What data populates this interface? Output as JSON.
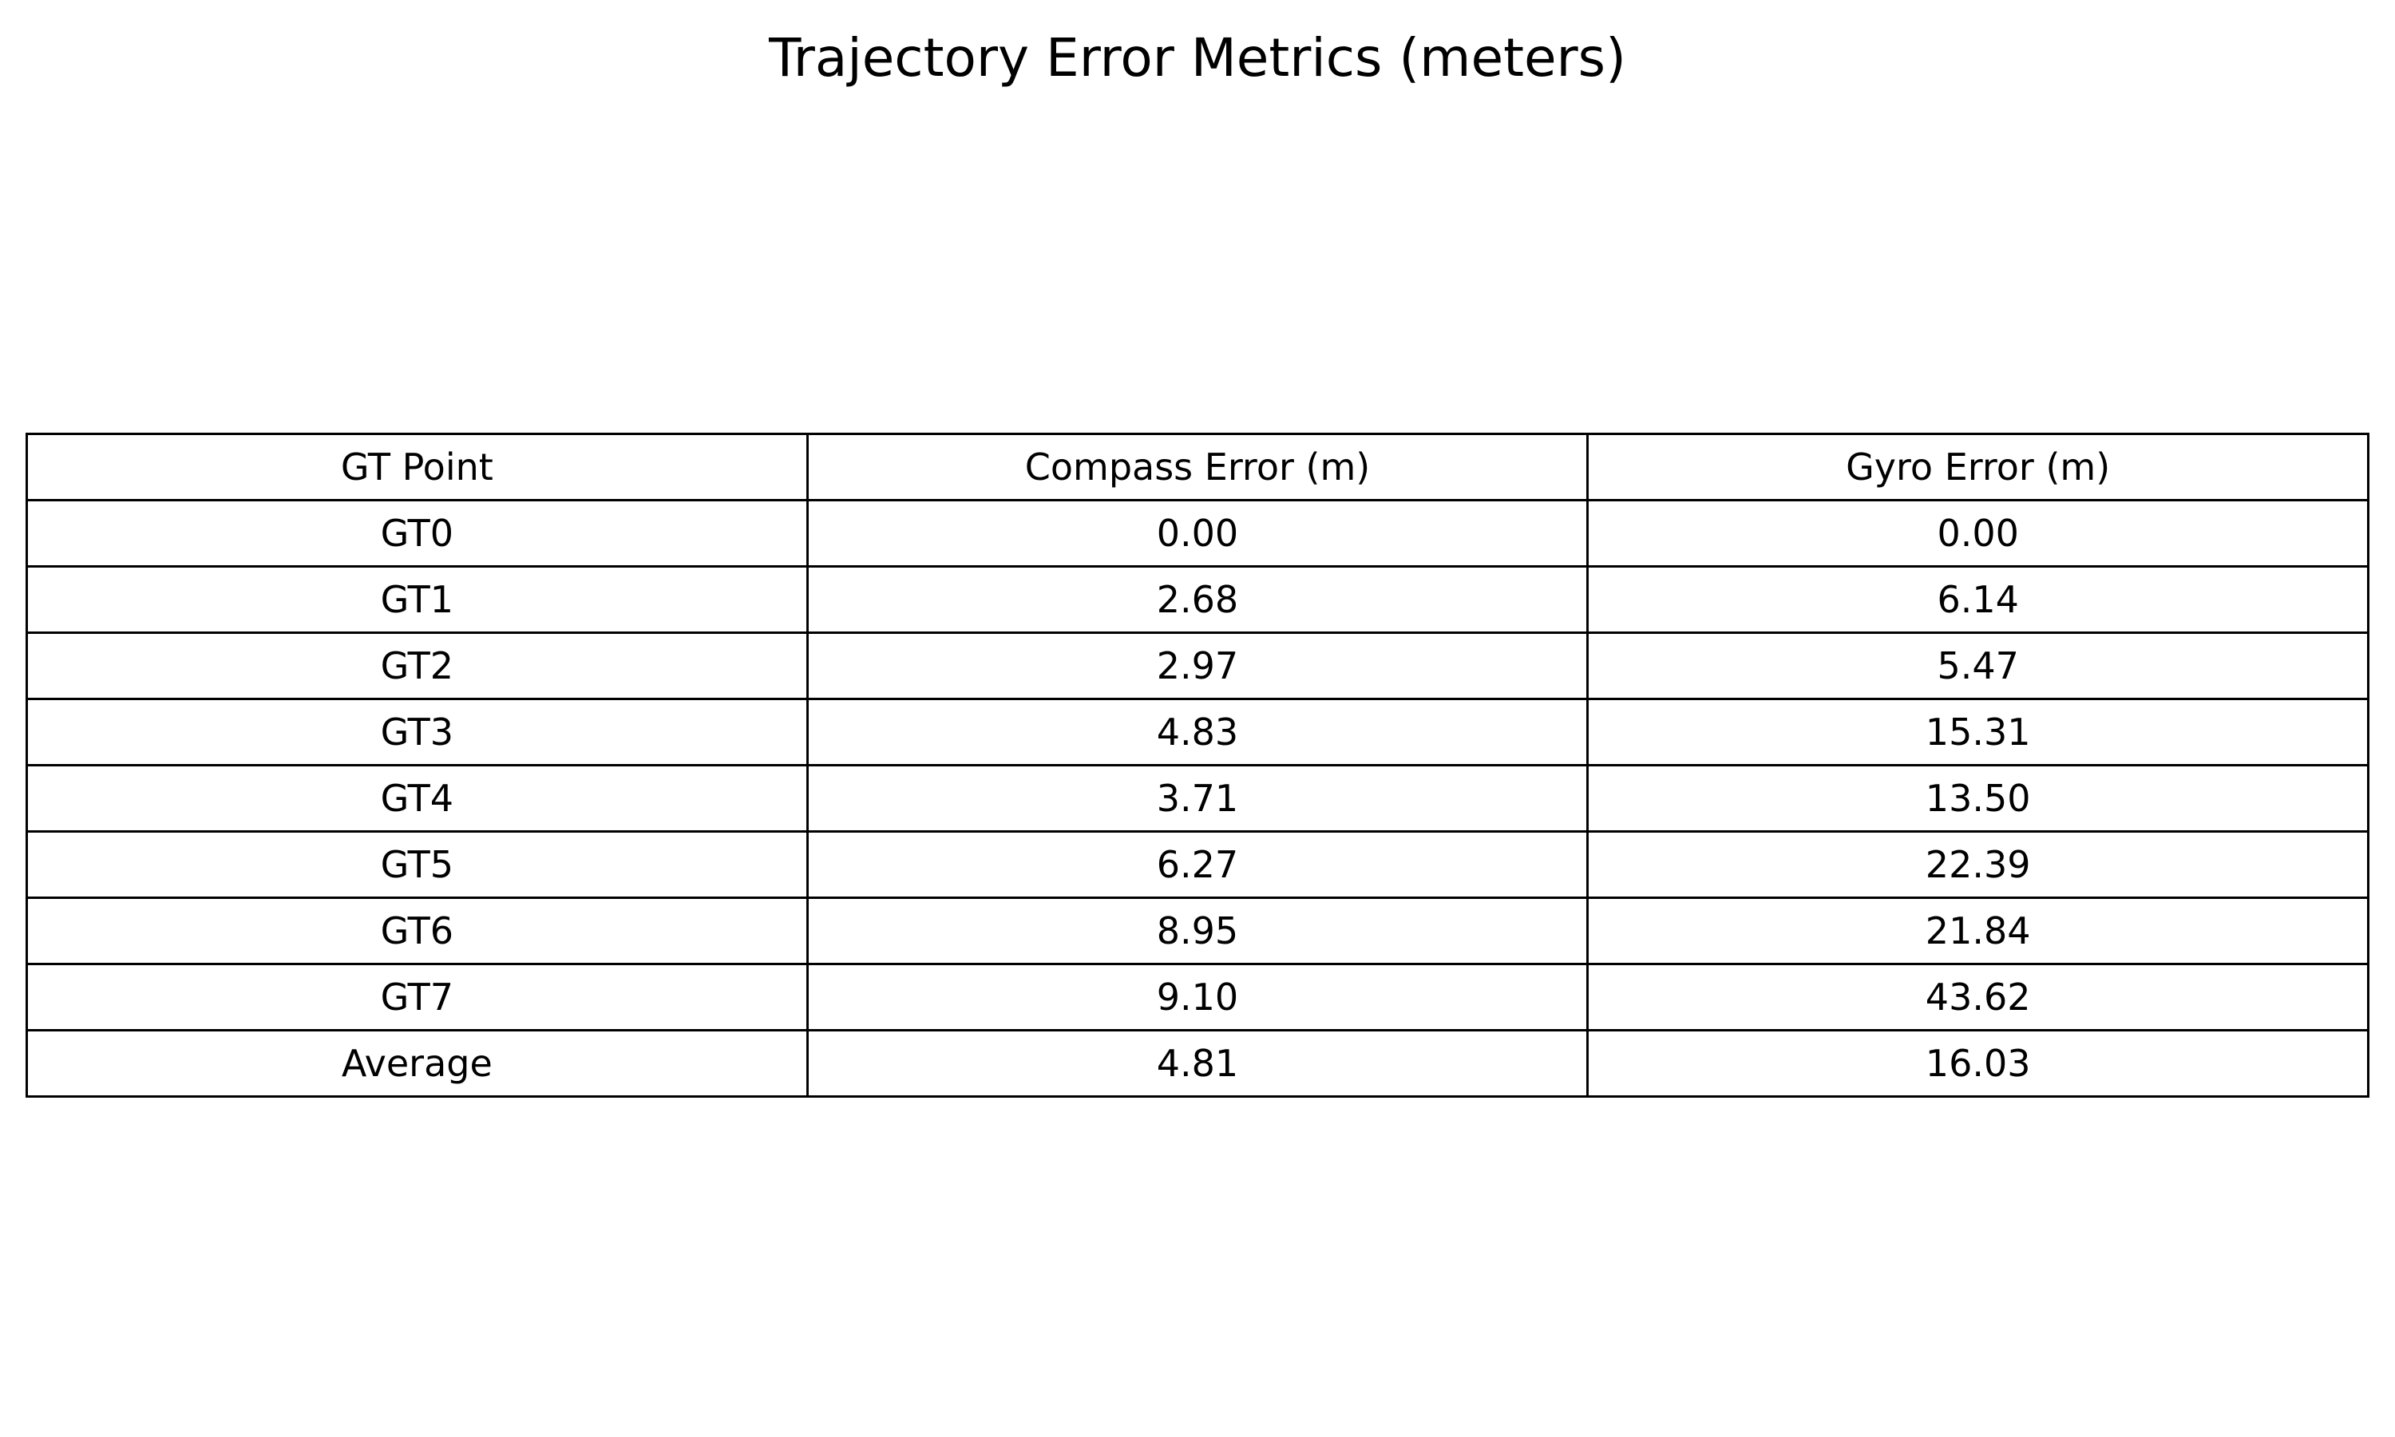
{
  "chart_data": {
    "type": "table",
    "title": "Trajectory Error Metrics (meters)",
    "columns": [
      "GT Point",
      "Compass Error (m)",
      "Gyro Error (m)"
    ],
    "rows": [
      [
        "GT0",
        "0.00",
        "0.00"
      ],
      [
        "GT1",
        "2.68",
        "6.14"
      ],
      [
        "GT2",
        "2.97",
        "5.47"
      ],
      [
        "GT3",
        "4.83",
        "15.31"
      ],
      [
        "GT4",
        "3.71",
        "13.50"
      ],
      [
        "GT5",
        "6.27",
        "22.39"
      ],
      [
        "GT6",
        "8.95",
        "21.84"
      ],
      [
        "GT7",
        "9.10",
        "43.62"
      ],
      [
        "Average",
        "4.81",
        "16.03"
      ]
    ]
  }
}
